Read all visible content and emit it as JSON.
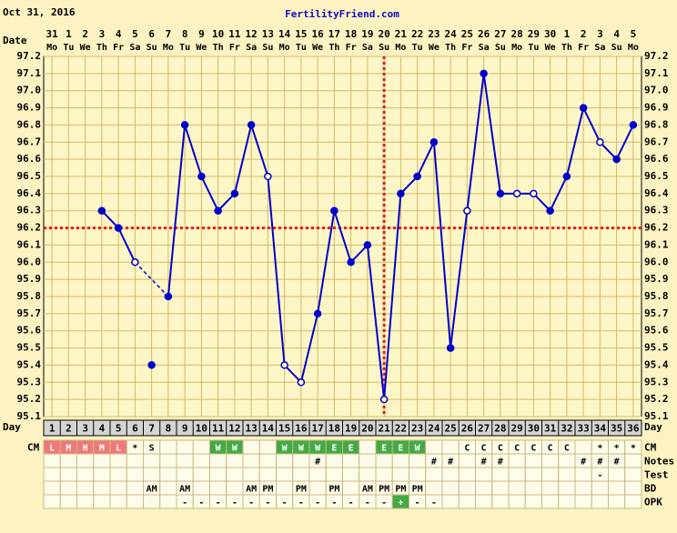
{
  "chart_data": {
    "type": "line",
    "subtitle": "Oct 31, 2016",
    "title": "FertilityFriend.com",
    "date_label": "Date",
    "day_label": "Day",
    "dates": [
      31,
      1,
      2,
      3,
      4,
      5,
      6,
      7,
      8,
      9,
      10,
      11,
      12,
      13,
      14,
      15,
      16,
      17,
      18,
      19,
      20,
      21,
      22,
      23,
      24,
      25,
      26,
      27,
      28,
      29,
      30,
      1,
      2,
      3,
      4,
      5
    ],
    "weekdays": [
      "Mo",
      "Tu",
      "We",
      "Th",
      "Fr",
      "Sa",
      "Su",
      "Mo",
      "Tu",
      "We",
      "Th",
      "Fr",
      "Sa",
      "Su",
      "Mo",
      "Tu",
      "We",
      "Th",
      "Fr",
      "Sa",
      "Su",
      "Mo",
      "Tu",
      "We",
      "Th",
      "Fr",
      "Sa",
      "Su",
      "Mo",
      "Tu",
      "We",
      "Th",
      "Fr",
      "Sa",
      "Su",
      "Mo"
    ],
    "cycle_days": [
      1,
      2,
      3,
      4,
      5,
      6,
      7,
      8,
      9,
      10,
      11,
      12,
      13,
      14,
      15,
      16,
      17,
      18,
      19,
      20,
      21,
      22,
      23,
      24,
      25,
      26,
      27,
      28,
      29,
      30,
      31,
      32,
      33,
      34,
      35,
      36
    ],
    "series": [
      {
        "color": "#0000cc",
        "values": [
          null,
          null,
          null,
          96.3,
          96.2,
          96.0,
          95.4,
          95.8,
          96.8,
          96.5,
          96.3,
          96.4,
          96.8,
          96.5,
          95.4,
          95.3,
          95.7,
          96.3,
          96.0,
          96.1,
          95.2,
          96.4,
          96.5,
          96.7,
          95.5,
          96.3,
          97.1,
          96.4,
          96.4,
          96.4,
          96.3,
          96.5,
          96.9,
          96.7,
          96.6,
          96.8
        ],
        "markers": [
          null,
          null,
          null,
          "filled",
          "filled",
          "open",
          "excluded",
          "filled",
          "filled",
          "filled",
          "filled",
          "filled",
          "filled",
          "open",
          "open",
          "open",
          "filled",
          "filled",
          "filled",
          "filled",
          "open",
          "filled",
          "filled",
          "filled",
          "filled",
          "open",
          "filled",
          "filled",
          "open",
          "open",
          "filled",
          "filled",
          "filled",
          "open",
          "filled",
          "filled"
        ]
      }
    ],
    "coverline": {
      "value": 96.2,
      "color": "#e02020"
    },
    "ovulation_day": 21,
    "ylim": [
      95.1,
      97.2
    ],
    "yticks": [
      95.1,
      95.2,
      95.3,
      95.4,
      95.5,
      95.6,
      95.7,
      95.8,
      95.9,
      {
        "value": 96,
        "label": "96.0"
      },
      96.1,
      96.2,
      96.3,
      96.4,
      96.5,
      96.6,
      96.7,
      96.8,
      96.9,
      {
        "value": 97,
        "label": "97.0"
      },
      97.1,
      97.2
    ],
    "grid": true,
    "rows": [
      {
        "label": "CM",
        "cells": [
          "L",
          "M",
          "H",
          "M",
          "L",
          "*",
          "S",
          null,
          null,
          null,
          "W",
          "W",
          null,
          null,
          "W",
          "W",
          "W",
          "E",
          "E",
          null,
          "E",
          "E",
          "W",
          null,
          null,
          "C",
          "C",
          "C",
          "C",
          "C",
          "C",
          "C",
          null,
          "*",
          "*",
          "*"
        ],
        "colors": [
          "#f07878",
          "#f07878",
          "#f07878",
          "#f07878",
          "#f07878",
          null,
          null,
          null,
          null,
          null,
          "#44aa44",
          "#44aa44",
          null,
          null,
          "#44aa44",
          "#44aa44",
          "#44aa44",
          "#44aa44",
          "#44aa44",
          null,
          "#44aa44",
          "#44aa44",
          "#44aa44",
          null,
          null,
          null,
          null,
          null,
          null,
          null,
          null,
          null,
          null,
          null,
          null,
          null
        ]
      },
      {
        "label": "Notes",
        "cells": [
          null,
          null,
          null,
          null,
          null,
          null,
          null,
          null,
          null,
          null,
          null,
          null,
          null,
          null,
          null,
          null,
          "#",
          null,
          null,
          null,
          null,
          null,
          null,
          "#",
          "#",
          null,
          "#",
          "#",
          null,
          null,
          null,
          null,
          "#",
          "#",
          "#",
          null
        ]
      },
      {
        "label": "Test",
        "cells": [
          null,
          null,
          null,
          null,
          null,
          null,
          null,
          null,
          null,
          null,
          null,
          null,
          null,
          null,
          null,
          null,
          null,
          null,
          null,
          null,
          null,
          null,
          null,
          null,
          null,
          null,
          null,
          null,
          null,
          null,
          null,
          null,
          null,
          "-",
          null,
          null
        ]
      },
      {
        "label": "BD",
        "cells": [
          null,
          null,
          null,
          null,
          null,
          null,
          "AM",
          null,
          "AM",
          null,
          null,
          null,
          "AM",
          "PM",
          null,
          "PM",
          null,
          "PM",
          null,
          "AM",
          "PM",
          "PM",
          "PM",
          null,
          null,
          null,
          null,
          null,
          null,
          null,
          null,
          null,
          null,
          null,
          null,
          null
        ]
      },
      {
        "label": "OPK",
        "cells": [
          null,
          null,
          null,
          null,
          null,
          null,
          null,
          null,
          "-",
          "-",
          "-",
          "-",
          "-",
          "-",
          "-",
          "-",
          "-",
          "-",
          "-",
          "-",
          "-",
          "+",
          "-",
          "-",
          null,
          null,
          null,
          null,
          null,
          null,
          null,
          null,
          null,
          null,
          null,
          null
        ],
        "colors": [
          null,
          null,
          null,
          null,
          null,
          null,
          null,
          null,
          null,
          null,
          null,
          null,
          null,
          null,
          null,
          null,
          null,
          null,
          null,
          null,
          null,
          "#44aa44",
          null,
          null,
          null,
          null,
          null,
          null,
          null,
          null,
          null,
          null,
          null,
          null,
          null,
          null
        ]
      }
    ]
  }
}
